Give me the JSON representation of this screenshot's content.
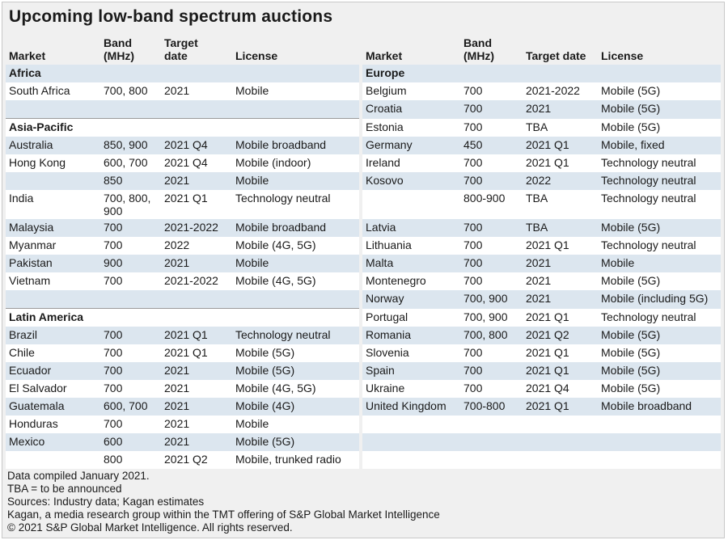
{
  "header": {
    "title": "Upcoming low-band spectrum auctions"
  },
  "table": {
    "headers": {
      "left": [
        "Market",
        "Band\n(MHz)",
        "Target\ndate",
        "License"
      ],
      "right": [
        "Market",
        "Band\n(MHz)",
        "Target date",
        "License"
      ]
    },
    "rows": [
      {
        "left": "Africa",
        "right": "Europe"
      },
      {
        "left": [
          "South Africa",
          "700, 800",
          "2021",
          "Mobile"
        ],
        "right": [
          "Belgium",
          "700",
          "2021-2022",
          "Mobile (5G)"
        ]
      },
      {
        "left": null,
        "right": [
          "Croatia",
          "700",
          "2021",
          "Mobile (5G)"
        ]
      },
      {
        "left": "Asia-Pacific",
        "right": [
          "Estonia",
          "700",
          "TBA",
          "Mobile (5G)"
        ]
      },
      {
        "left": [
          "Australia",
          "850, 900",
          "2021 Q4",
          "Mobile broadband"
        ],
        "right": [
          "Germany",
          "450",
          "2021 Q1",
          "Mobile, fixed"
        ]
      },
      {
        "left": [
          "Hong Kong",
          "600, 700",
          "2021 Q4",
          "Mobile (indoor)"
        ],
        "right": [
          "Ireland",
          "700",
          "2021 Q1",
          "Technology neutral"
        ]
      },
      {
        "left": [
          null,
          "850",
          "2021",
          "Mobile"
        ],
        "right": [
          "Kosovo",
          "700",
          "2022",
          "Technology neutral"
        ]
      },
      {
        "left": [
          "India",
          "700, 800,\n900",
          "2021 Q1",
          "Technology neutral"
        ],
        "right": [
          null,
          "800-900",
          "TBA",
          "Technology neutral"
        ]
      },
      {
        "left": [
          "Malaysia",
          "700",
          "2021-2022",
          "Mobile broadband"
        ],
        "right": [
          "Latvia",
          "700",
          "TBA",
          "Mobile (5G)"
        ]
      },
      {
        "left": [
          "Myanmar",
          "700",
          "2022",
          "Mobile (4G, 5G)"
        ],
        "right": [
          "Lithuania",
          "700",
          "2021 Q1",
          "Technology neutral"
        ]
      },
      {
        "left": [
          "Pakistan",
          "900",
          "2021",
          "Mobile"
        ],
        "right": [
          "Malta",
          "700",
          "2021",
          "Mobile"
        ]
      },
      {
        "left": [
          "Vietnam",
          "700",
          "2021-2022",
          "Mobile (4G, 5G)"
        ],
        "right": [
          "Montenegro",
          "700",
          "2021",
          "Mobile (5G)"
        ]
      },
      {
        "left": null,
        "right": [
          "Norway",
          "700, 900",
          "2021",
          "Mobile (including 5G)"
        ]
      },
      {
        "left": "Latin America",
        "right": [
          "Portugal",
          "700, 900",
          "2021 Q1",
          "Technology neutral"
        ]
      },
      {
        "left": [
          "Brazil",
          "700",
          "2021 Q1",
          "Technology neutral"
        ],
        "right": [
          "Romania",
          "700, 800",
          "2021 Q2",
          "Mobile (5G)"
        ]
      },
      {
        "left": [
          "Chile",
          "700",
          "2021 Q1",
          "Mobile (5G)"
        ],
        "right": [
          "Slovenia",
          "700",
          "2021 Q1",
          "Mobile (5G)"
        ]
      },
      {
        "left": [
          "Ecuador",
          "700",
          "2021",
          "Mobile (5G)"
        ],
        "right": [
          "Spain",
          "700",
          "2021 Q1",
          "Mobile (5G)"
        ]
      },
      {
        "left": [
          "El Salvador",
          "700",
          "2021",
          "Mobile (4G, 5G)"
        ],
        "right": [
          "Ukraine",
          "700",
          "2021 Q4",
          "Mobile (5G)"
        ]
      },
      {
        "left": [
          "Guatemala",
          "600, 700",
          "2021",
          "Mobile (4G)"
        ],
        "right": [
          "United Kingdom",
          "700-800",
          "2021 Q1",
          "Mobile broadband"
        ]
      },
      {
        "left": [
          "Honduras",
          "700",
          "2021",
          "Mobile"
        ],
        "right": null
      },
      {
        "left": [
          "Mexico",
          "600",
          "2021",
          "Mobile (5G)"
        ],
        "right": null
      },
      {
        "left": [
          null,
          "800",
          "2021 Q2",
          "Mobile, trunked radio"
        ],
        "right": null
      }
    ]
  },
  "footer": [
    "Data compiled January 2021.",
    "TBA = to be announced",
    "Sources: Industry data; Kagan estimates",
    "Kagan, a media research group within the TMT offering of S&P Global Market Intelligence",
    "© 2021 S&P Global Market Intelligence. All rights reserved."
  ]
}
